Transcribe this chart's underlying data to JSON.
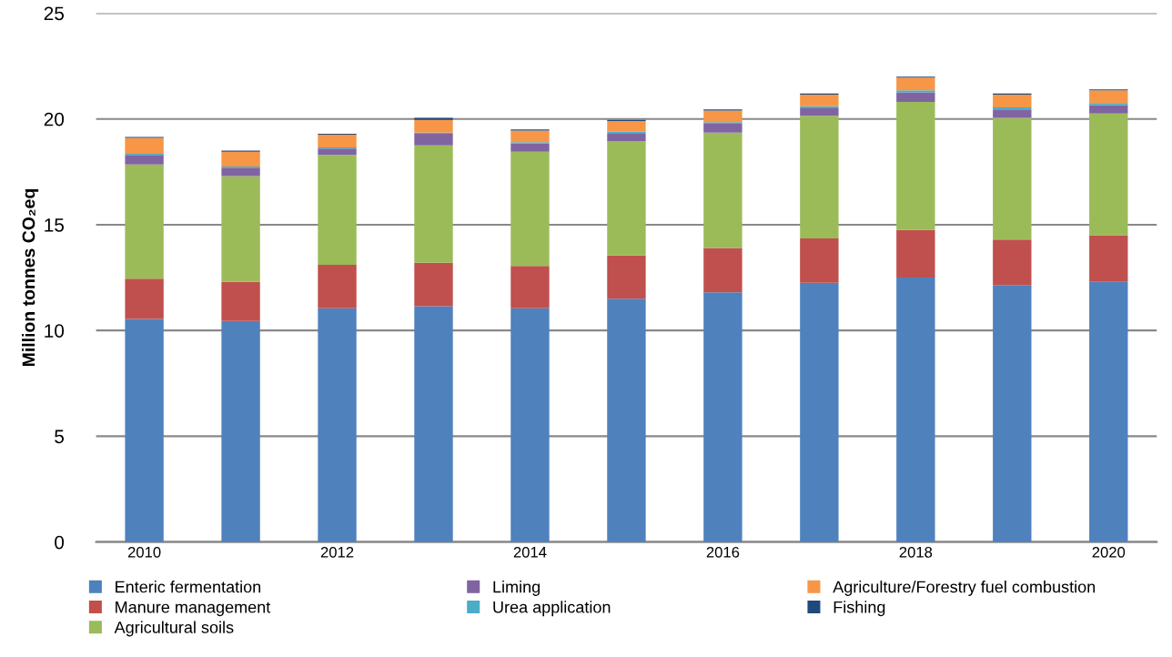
{
  "chart_data": {
    "type": "bar",
    "stacked": true,
    "ylabel": "Million tonnes CO₂eq",
    "categories": [
      "2010",
      null,
      "2012",
      null,
      "2014",
      null,
      "2016",
      null,
      "2018",
      null,
      "2020"
    ],
    "ylim": [
      0,
      25
    ],
    "yticks": [
      0,
      5,
      10,
      15,
      20,
      25
    ],
    "grid": "y",
    "legend": "bottom",
    "series": [
      {
        "name": "Enteric fermentation",
        "color": "#4f81bd",
        "values": [
          10.55,
          10.45,
          11.05,
          11.15,
          11.05,
          11.5,
          11.8,
          12.25,
          12.5,
          12.15,
          12.3
        ]
      },
      {
        "name": "Manure management",
        "color": "#c0504d",
        "values": [
          1.9,
          1.85,
          2.05,
          2.05,
          2.0,
          2.05,
          2.1,
          2.1,
          2.25,
          2.15,
          2.2
        ]
      },
      {
        "name": "Agricultural soils",
        "color": "#9bbb59",
        "values": [
          5.4,
          5.0,
          5.2,
          5.55,
          5.4,
          5.4,
          5.45,
          5.8,
          6.05,
          5.75,
          5.75
        ]
      },
      {
        "name": "Liming",
        "color": "#8064a2",
        "values": [
          0.45,
          0.4,
          0.3,
          0.55,
          0.4,
          0.35,
          0.45,
          0.35,
          0.45,
          0.4,
          0.4
        ]
      },
      {
        "name": "Urea application",
        "color": "#4bacc6",
        "values": [
          0.05,
          0.05,
          0.05,
          0.05,
          0.05,
          0.1,
          0.05,
          0.1,
          0.1,
          0.1,
          0.1
        ]
      },
      {
        "name": "Agriculture/Forestry fuel combustion",
        "color": "#f79646",
        "values": [
          0.75,
          0.7,
          0.6,
          0.6,
          0.55,
          0.5,
          0.55,
          0.55,
          0.6,
          0.6,
          0.6
        ]
      },
      {
        "name": "Fishing",
        "color": "#1f497d",
        "values": [
          0.05,
          0.05,
          0.05,
          0.1,
          0.05,
          0.05,
          0.05,
          0.05,
          0.05,
          0.05,
          0.05
        ]
      }
    ]
  }
}
